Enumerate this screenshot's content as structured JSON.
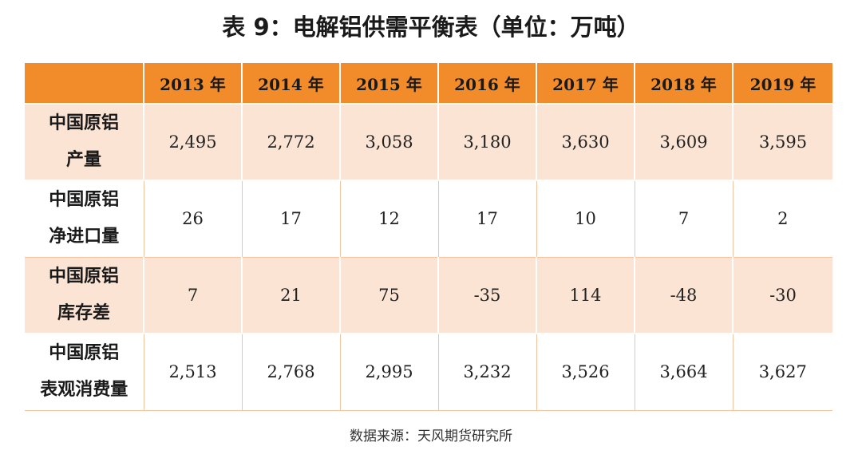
{
  "title": "表 9：电解铝供需平衡表（单位：万吨）",
  "table": {
    "header_corner": "",
    "years": [
      "2013 年",
      "2014 年",
      "2015 年",
      "2016 年",
      "2017 年",
      "2018 年",
      "2019 年"
    ],
    "rows": [
      {
        "label_line1": "中国原铝",
        "label_line2": "产量",
        "values": [
          "2,495",
          "2,772",
          "3,058",
          "3,180",
          "3,630",
          "3,609",
          "3,595"
        ]
      },
      {
        "label_line1": "中国原铝",
        "label_line2": "净进口量",
        "values": [
          "26",
          "17",
          "12",
          "17",
          "10",
          "7",
          "2"
        ]
      },
      {
        "label_line1": "中国原铝",
        "label_line2": "库存差",
        "values": [
          "7",
          "21",
          "75",
          "-35",
          "114",
          "-48",
          "-30"
        ]
      },
      {
        "label_line1": "中国原铝",
        "label_line2": "表观消费量",
        "values": [
          "2,513",
          "2,768",
          "2,995",
          "3,232",
          "3,526",
          "3,664",
          "3,627"
        ]
      }
    ]
  },
  "source": "数据来源：天风期货研究所",
  "colors": {
    "header_bg": "#f28c2b",
    "alt_row_bg": "#fbe4d3",
    "plain_row_bg": "#ffffff"
  }
}
